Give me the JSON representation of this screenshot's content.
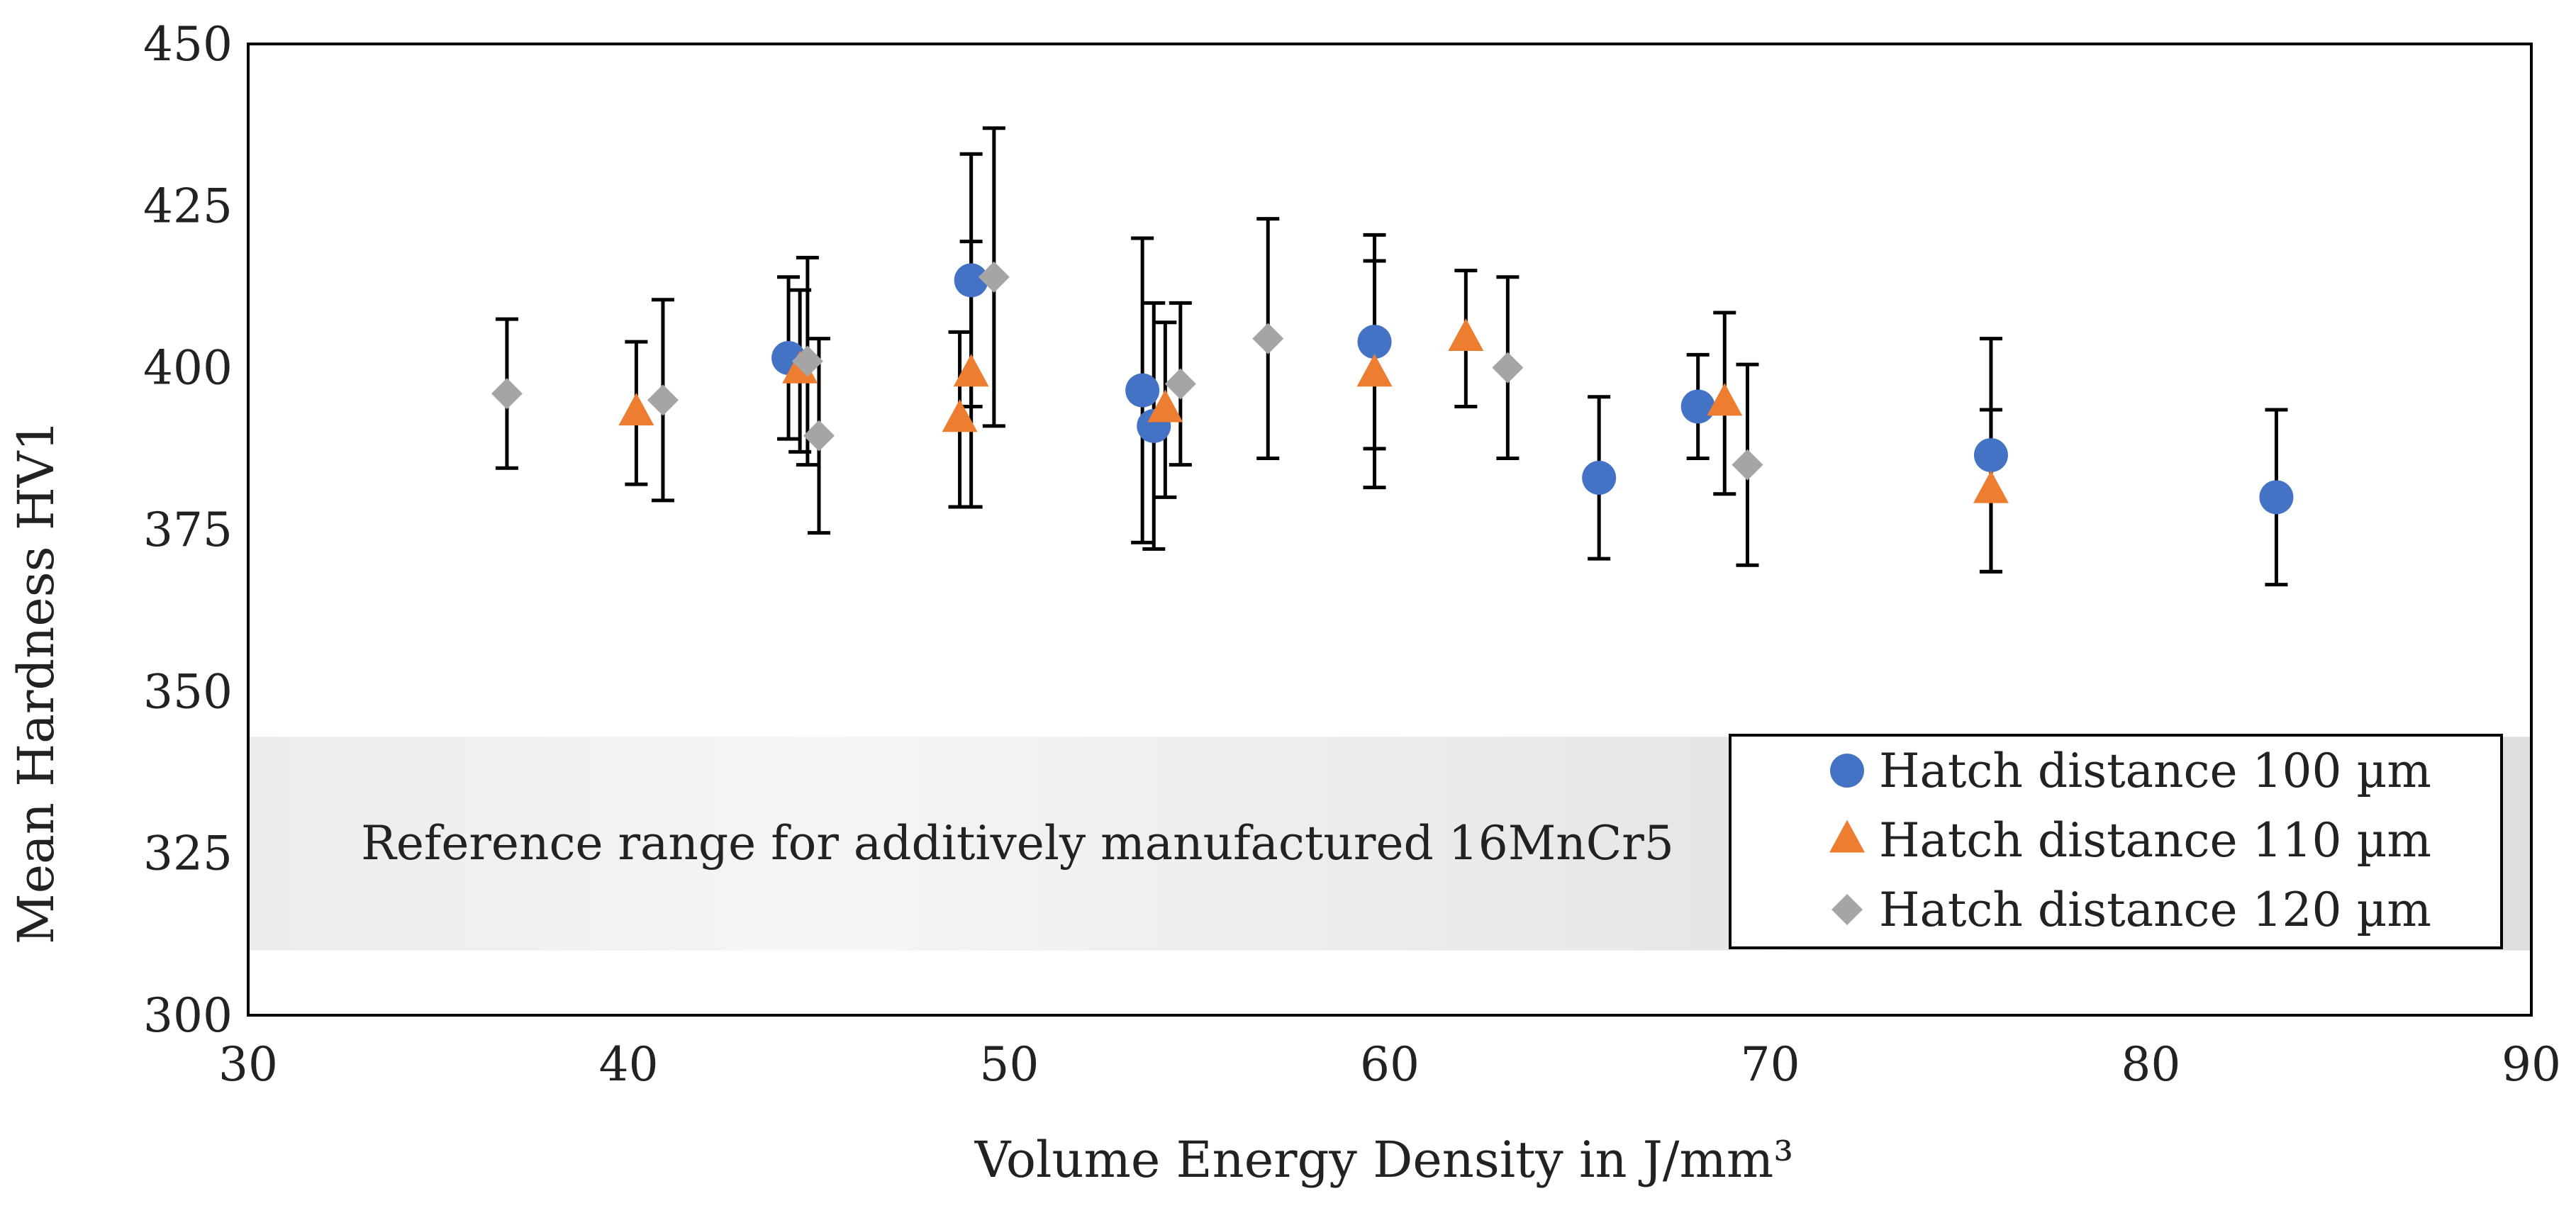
{
  "chart_data": {
    "type": "scatter",
    "xlabel": "Volume Energy Density in J/mm³",
    "ylabel": "Mean Hardness HV1",
    "xlim": [
      30,
      90
    ],
    "ylim": [
      300,
      450
    ],
    "xticks": [
      30,
      40,
      50,
      60,
      70,
      80,
      90
    ],
    "yticks": [
      300,
      325,
      350,
      375,
      400,
      425,
      450
    ],
    "grid": false,
    "legend_position": "lower-right",
    "reference_band": {
      "label": "Reference range for additively manufactured 16MnCr5",
      "y_range": [
        310,
        343
      ],
      "color": "#e6e6e6"
    },
    "series": [
      {
        "name": "Hatch distance 100 µm",
        "marker": "circle",
        "color": "#4472c4",
        "points": [
          {
            "x": 44.2,
            "y": 401.5,
            "err": 12.5
          },
          {
            "x": 49.0,
            "y": 413.5,
            "err": 19.5
          },
          {
            "x": 53.5,
            "y": 396.5,
            "err": 23.5
          },
          {
            "x": 53.8,
            "y": 391.0,
            "err": 19.0
          },
          {
            "x": 59.6,
            "y": 404.0,
            "err": 16.5
          },
          {
            "x": 65.5,
            "y": 383.0,
            "err": 12.5
          },
          {
            "x": 68.1,
            "y": 394.0,
            "err": 8.0
          },
          {
            "x": 75.8,
            "y": 386.5,
            "err": 18.0
          },
          {
            "x": 83.3,
            "y": 380.0,
            "err": 13.5
          }
        ]
      },
      {
        "name": "Hatch distance 110 µm",
        "marker": "triangle",
        "color": "#ed7d31",
        "points": [
          {
            "x": 40.2,
            "y": 393.0,
            "err": 11.0
          },
          {
            "x": 44.5,
            "y": 399.5,
            "err": 12.5
          },
          {
            "x": 48.7,
            "y": 392.0,
            "err": 13.5
          },
          {
            "x": 49.0,
            "y": 399.0,
            "err": 20.5
          },
          {
            "x": 54.1,
            "y": 393.5,
            "err": 13.5
          },
          {
            "x": 59.6,
            "y": 399.0,
            "err": 17.5
          },
          {
            "x": 62.0,
            "y": 404.5,
            "err": 10.5
          },
          {
            "x": 68.8,
            "y": 394.5,
            "err": 14.0
          },
          {
            "x": 75.8,
            "y": 381.0,
            "err": 12.5
          }
        ]
      },
      {
        "name": "Hatch distance 120 µm",
        "marker": "diamond",
        "color": "#a5a5a5",
        "points": [
          {
            "x": 36.8,
            "y": 396.0,
            "err": 11.5
          },
          {
            "x": 40.9,
            "y": 395.0,
            "err": 15.5
          },
          {
            "x": 44.7,
            "y": 401.0,
            "err": 16.0
          },
          {
            "x": 45.0,
            "y": 389.5,
            "err": 15.0
          },
          {
            "x": 49.6,
            "y": 414.0,
            "err": 23.0
          },
          {
            "x": 54.5,
            "y": 397.5,
            "err": 12.5
          },
          {
            "x": 56.8,
            "y": 404.5,
            "err": 18.5
          },
          {
            "x": 63.1,
            "y": 400.0,
            "err": 14.0
          },
          {
            "x": 69.4,
            "y": 385.0,
            "err": 15.5
          }
        ]
      }
    ]
  }
}
